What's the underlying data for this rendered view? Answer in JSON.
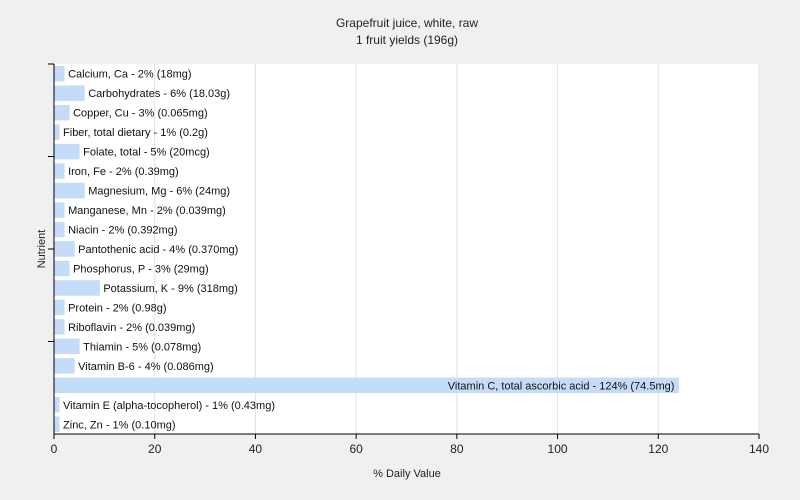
{
  "chart_data": {
    "type": "bar",
    "orientation": "horizontal",
    "title": "Grapefruit juice, white, raw",
    "subtitle": "1 fruit yields (196g)",
    "xlabel": "% Daily Value",
    "ylabel": "Nutrient",
    "xlim": [
      0,
      140
    ],
    "xticks": [
      0,
      20,
      40,
      60,
      80,
      100,
      120,
      140
    ],
    "grid": "vertical",
    "categories": [
      "Calcium, Ca",
      "Carbohydrates",
      "Copper, Cu",
      "Fiber, total dietary",
      "Folate, total",
      "Iron, Fe",
      "Magnesium, Mg",
      "Manganese, Mn",
      "Niacin",
      "Pantothenic acid",
      "Phosphorus, P",
      "Potassium, K",
      "Protein",
      "Riboflavin",
      "Thiamin",
      "Vitamin B-6",
      "Vitamin C, total ascorbic acid",
      "Vitamin E (alpha-tocopherol)",
      "Zinc, Zn"
    ],
    "values": [
      2,
      6,
      3,
      1,
      5,
      2,
      6,
      2,
      2,
      4,
      3,
      9,
      2,
      2,
      5,
      4,
      124,
      1,
      1
    ],
    "labels": [
      "Calcium, Ca - 2% (18mg)",
      "Carbohydrates - 6% (18.03g)",
      "Copper, Cu - 3% (0.065mg)",
      "Fiber, total dietary - 1% (0.2g)",
      "Folate, total - 5% (20mcg)",
      "Iron, Fe - 2% (0.39mg)",
      "Magnesium, Mg - 6% (24mg)",
      "Manganese, Mn - 2% (0.039mg)",
      "Niacin - 2% (0.392mg)",
      "Pantothenic acid - 4% (0.370mg)",
      "Phosphorus, P - 3% (29mg)",
      "Potassium, K - 9% (318mg)",
      "Protein - 2% (0.98g)",
      "Riboflavin - 2% (0.039mg)",
      "Thiamin - 5% (0.078mg)",
      "Vitamin B-6 - 4% (0.086mg)",
      "Vitamin C, total ascorbic acid - 124% (74.5mg)",
      "Vitamin E (alpha-tocopherol) - 1% (0.43mg)",
      "Zinc, Zn - 1% (0.10mg)"
    ],
    "colors": {
      "background": "#f0f0f0",
      "plot_background": "#ffffff",
      "bar": "#c5dcf8",
      "grid": "#e2e2e2",
      "axis": "#000000"
    }
  }
}
